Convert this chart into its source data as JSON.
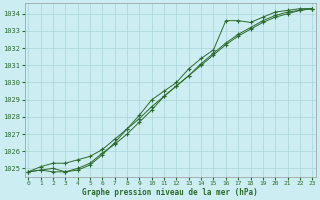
{
  "title": "Graphe pression niveau de la mer (hPa)",
  "bg_color": "#cceef2",
  "grid_color": "#aad4d8",
  "line_color": "#2d6a2d",
  "line1": {
    "x": [
      0,
      1,
      2,
      3,
      4,
      5,
      6,
      7,
      8,
      9,
      10,
      11,
      12,
      13,
      14,
      15,
      16,
      17,
      18,
      19,
      20,
      21,
      22,
      23
    ],
    "y": [
      1024.8,
      1024.9,
      1024.8,
      1024.8,
      1025.0,
      1025.3,
      1025.9,
      1026.4,
      1027.0,
      1027.7,
      1028.4,
      1029.2,
      1029.8,
      1030.4,
      1031.1,
      1031.7,
      1032.3,
      1032.8,
      1033.2,
      1033.6,
      1033.9,
      1034.1,
      1034.2,
      1034.3
    ]
  },
  "line2": {
    "x": [
      0,
      1,
      2,
      3,
      4,
      5,
      6,
      7,
      8,
      9,
      10,
      11,
      12,
      13,
      14,
      15,
      16,
      17,
      18,
      19,
      20,
      21,
      22,
      23
    ],
    "y": [
      1024.8,
      1024.9,
      1025.0,
      1024.8,
      1024.9,
      1025.2,
      1025.8,
      1026.5,
      1027.3,
      1028.1,
      1029.0,
      1029.5,
      1030.0,
      1030.8,
      1031.4,
      1031.9,
      1033.6,
      1033.6,
      1033.5,
      1033.8,
      1034.1,
      1034.2,
      1034.3,
      1034.3
    ]
  },
  "line3": {
    "x": [
      0,
      1,
      2,
      3,
      4,
      5,
      6,
      7,
      8,
      9,
      10,
      11,
      12,
      13,
      14,
      15,
      16,
      17,
      18,
      19,
      20,
      21,
      22,
      23
    ],
    "y": [
      1024.8,
      1025.1,
      1025.3,
      1025.3,
      1025.5,
      1025.7,
      1026.1,
      1026.7,
      1027.3,
      1027.9,
      1028.6,
      1029.2,
      1029.8,
      1030.4,
      1031.0,
      1031.6,
      1032.2,
      1032.7,
      1033.1,
      1033.5,
      1033.8,
      1034.0,
      1034.2,
      1034.3
    ]
  },
  "ylim": [
    1024.5,
    1034.6
  ],
  "yticks": [
    1025,
    1026,
    1027,
    1028,
    1029,
    1030,
    1031,
    1032,
    1033,
    1034
  ],
  "xticks": [
    0,
    1,
    2,
    3,
    4,
    5,
    6,
    7,
    8,
    9,
    10,
    11,
    12,
    13,
    14,
    15,
    16,
    17,
    18,
    19,
    20,
    21,
    22,
    23
  ],
  "xlim": [
    -0.3,
    23.3
  ],
  "figsize": [
    3.2,
    2.0
  ],
  "dpi": 100
}
